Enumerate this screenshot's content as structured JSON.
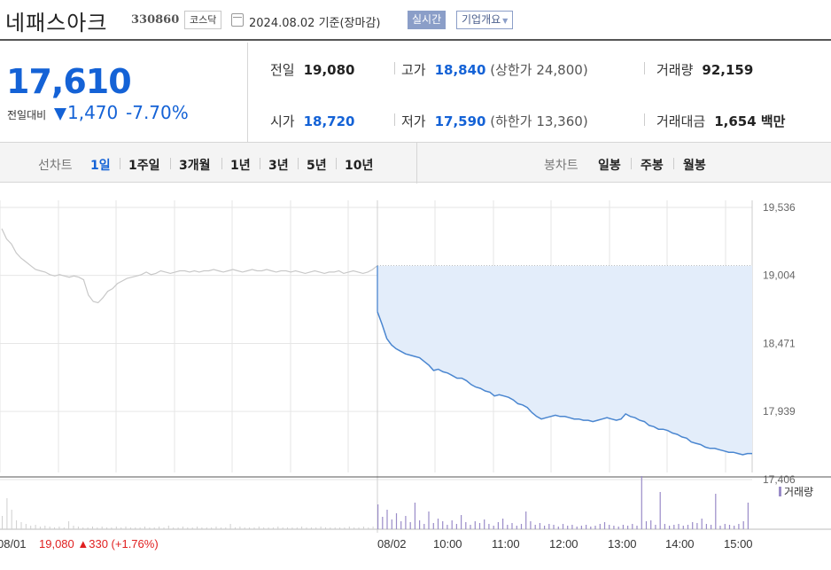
{
  "header": {
    "stock_name": "네패스아크",
    "stock_code": "330860",
    "market": "코스닥",
    "date_text": "2024.08.02  기준(장마감)",
    "realtime_label": "실시간",
    "corp_overview_label": "기업개요"
  },
  "price": {
    "current": "17,610",
    "compare_label": "전일대비",
    "change": "1,470",
    "change_pct": "-7.70%",
    "direction": "down",
    "color": "#1462d6"
  },
  "stats": {
    "prev_close": {
      "label": "전일",
      "value": "19,080"
    },
    "high": {
      "label": "고가",
      "value": "18,840",
      "limit_label": "(상한가",
      "limit_value": "24,800)"
    },
    "volume": {
      "label": "거래량",
      "value": "92,159"
    },
    "open": {
      "label": "시가",
      "value": "18,720"
    },
    "low": {
      "label": "저가",
      "value": "17,590",
      "limit_label": "(하한가",
      "limit_value": "13,360)"
    },
    "trade_value": {
      "label": "거래대금",
      "value": "1,654 백만"
    }
  },
  "tabs": {
    "line_label": "선차트",
    "line_tabs": [
      "1일",
      "1주일",
      "3개월",
      "1년",
      "3년",
      "5년",
      "10년"
    ],
    "line_active": "1일",
    "candle_label": "봉차트",
    "candle_tabs": [
      "일봉",
      "주봉",
      "월봉"
    ]
  },
  "chart_data": {
    "type": "line",
    "y_ticks": [
      19536,
      19004,
      18471,
      17939,
      17406
    ],
    "y_tick_labels": [
      "19,536",
      "19,004",
      "18,471",
      "17,939",
      "17,406"
    ],
    "ylim": [
      17406,
      19536
    ],
    "prev_close": 19080,
    "x_labels": [
      "08/01",
      "08/02",
      "10:00",
      "11:00",
      "12:00",
      "13:00",
      "14:00",
      "15:00"
    ],
    "prev_day_label": "08/01",
    "prev_day_info": "19,080 ▲330 (+1.76%)",
    "prev_day_info_color": "#e02020",
    "volume_legend": "거래량",
    "line_color": "#4a86d0",
    "fill_color": "#e3edfa",
    "prev_line_color": "#c8c8c8",
    "volume_color": "#9a8cc8",
    "series": [
      {
        "name": "08/01",
        "values": [
          19370,
          19290,
          19250,
          19180,
          19140,
          19110,
          19080,
          19050,
          19040,
          19030,
          19010,
          19000,
          19010,
          19000,
          18990,
          19000,
          18990,
          18970,
          18850,
          18800,
          18790,
          18830,
          18880,
          18900,
          18940,
          18960,
          18980,
          18990,
          19000,
          19010,
          19030,
          19010,
          19020,
          19040,
          19030,
          19020,
          19030,
          19040,
          19040,
          19030,
          19040,
          19030,
          19040,
          19040,
          19050,
          19040,
          19030,
          19040,
          19050,
          19040,
          19030,
          19040,
          19050,
          19040,
          19040,
          19050,
          19040,
          19030,
          19040,
          19040,
          19030,
          19040,
          19030,
          19020,
          19030,
          19040,
          19030,
          19020,
          19030,
          19030,
          19040,
          19020,
          19030,
          19040,
          19030,
          19020,
          19030,
          19050,
          19080
        ]
      },
      {
        "name": "08/02",
        "times": [
          "09:00",
          "09:01",
          "09:03",
          "09:06",
          "09:10",
          "09:15",
          "09:20",
          "09:25",
          "09:30",
          "09:35",
          "09:40",
          "09:45",
          "09:50",
          "09:55",
          "10:00",
          "10:05",
          "10:10",
          "10:15",
          "10:20",
          "10:25",
          "10:30",
          "10:35",
          "10:40",
          "10:45",
          "10:50",
          "10:55",
          "11:00",
          "11:05",
          "11:10",
          "11:15",
          "11:20",
          "11:25",
          "11:30",
          "11:35",
          "11:40",
          "11:45",
          "11:50",
          "11:55",
          "12:00",
          "12:05",
          "12:10",
          "12:15",
          "12:20",
          "12:25",
          "12:30",
          "12:35",
          "12:40",
          "12:45",
          "12:50",
          "12:55",
          "13:00",
          "13:05",
          "13:10",
          "13:15",
          "13:20",
          "13:25",
          "13:30",
          "13:35",
          "13:40",
          "13:45",
          "13:50",
          "13:55",
          "14:00",
          "14:05",
          "14:10",
          "14:15",
          "14:20",
          "14:25",
          "14:30",
          "14:35",
          "14:40",
          "14:45",
          "14:50",
          "14:55",
          "15:00",
          "15:05",
          "15:10",
          "15:15",
          "15:20",
          "15:25",
          "15:30"
        ],
        "values": [
          18720,
          18620,
          18510,
          18460,
          18430,
          18410,
          18390,
          18380,
          18370,
          18360,
          18330,
          18300,
          18260,
          18270,
          18250,
          18240,
          18220,
          18200,
          18200,
          18180,
          18150,
          18130,
          18120,
          18100,
          18090,
          18060,
          18070,
          18060,
          18050,
          18030,
          18000,
          17990,
          17970,
          17930,
          17900,
          17880,
          17890,
          17900,
          17910,
          17900,
          17900,
          17890,
          17880,
          17880,
          17870,
          17870,
          17860,
          17870,
          17880,
          17890,
          17880,
          17870,
          17880,
          17920,
          17900,
          17890,
          17870,
          17860,
          17830,
          17820,
          17800,
          17800,
          17790,
          17770,
          17760,
          17740,
          17730,
          17700,
          17690,
          17680,
          17660,
          17650,
          17650,
          17640,
          17630,
          17620,
          17620,
          17610,
          17600,
          17610,
          17610
        ]
      }
    ],
    "volume_prev_day": [
      15,
      35,
      22,
      10,
      8,
      6,
      4,
      5,
      3,
      4,
      3,
      2,
      3,
      2,
      9,
      4,
      3,
      2,
      2,
      3,
      2,
      3,
      2,
      2,
      3,
      2,
      3,
      2,
      2,
      2,
      3,
      2,
      2,
      3,
      2,
      4,
      2,
      2,
      3,
      2,
      2,
      3,
      2,
      2,
      2,
      3,
      2,
      2,
      6,
      2,
      3,
      2,
      2,
      2,
      3,
      2,
      2,
      2,
      3,
      2,
      2,
      2,
      2,
      3,
      2,
      2,
      2,
      3,
      2,
      2,
      2,
      2,
      2,
      3,
      2,
      2,
      3,
      2,
      3
    ],
    "volume_today": [
      28,
      14,
      22,
      11,
      18,
      9,
      15,
      8,
      30,
      10,
      6,
      20,
      7,
      12,
      9,
      5,
      10,
      6,
      16,
      8,
      5,
      9,
      7,
      11,
      6,
      4,
      8,
      12,
      5,
      7,
      4,
      6,
      20,
      9,
      5,
      7,
      4,
      6,
      5,
      3,
      6,
      4,
      5,
      3,
      4,
      5,
      3,
      4,
      6,
      8,
      5,
      4,
      3,
      5,
      4,
      6,
      4,
      5,
      9,
      10,
      5,
      4,
      6,
      4,
      5,
      6,
      4,
      5,
      8,
      7,
      12,
      6,
      5,
      3,
      4,
      6,
      5,
      4,
      6,
      9,
      30
    ],
    "volume_spikes_today": {
      "57": 60,
      "61": 42,
      "73": 40
    }
  }
}
